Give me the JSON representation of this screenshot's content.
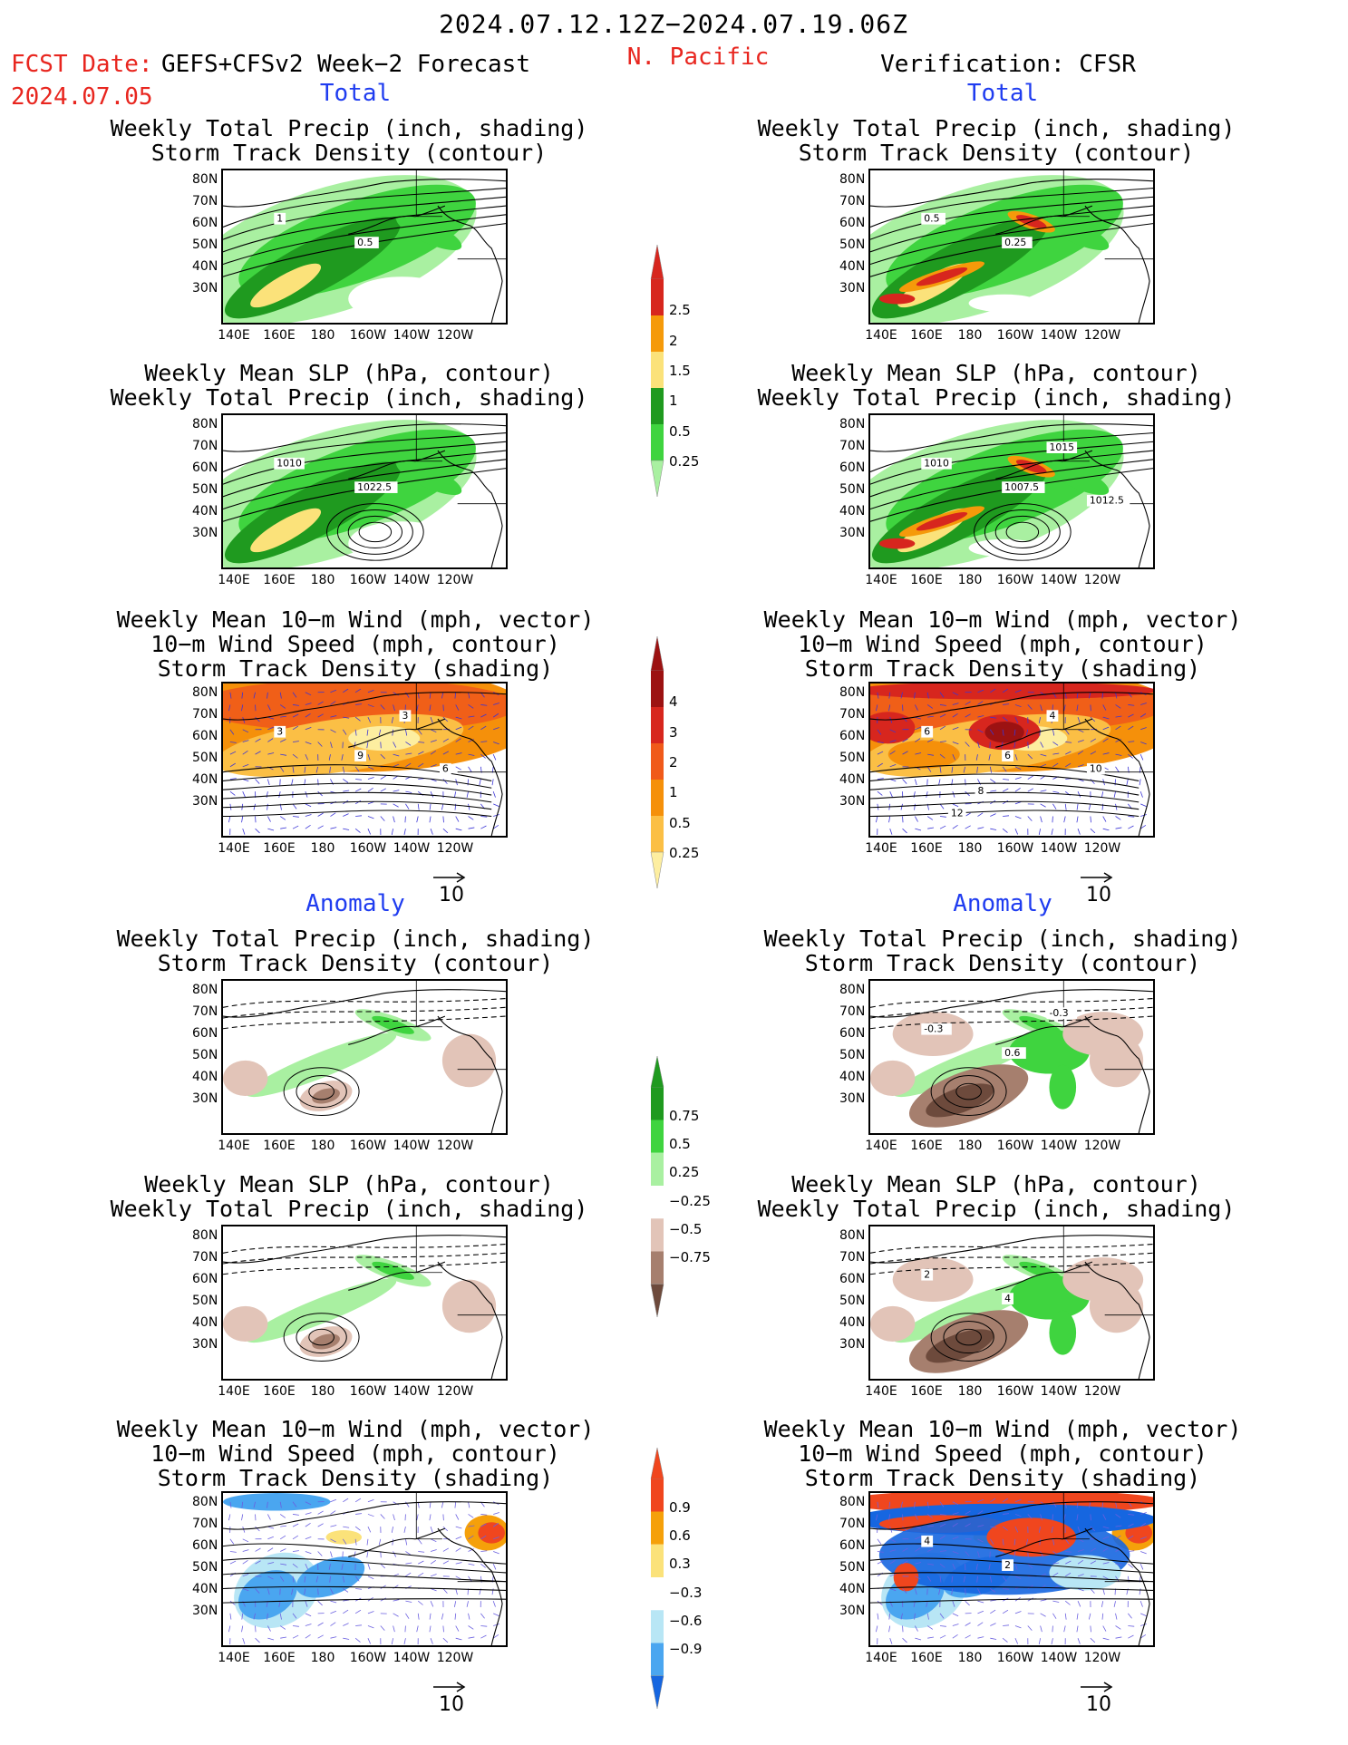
{
  "header": {
    "date_range": "2024.07.12.12Z−2024.07.19.06Z",
    "fcst_label": "FCST Date:",
    "fcst_product": "GEFS+CFSv2 Week−2 Forecast",
    "fcst_date": "2024.07.05",
    "region": "N. Pacific",
    "verification": "Verification: CFSR"
  },
  "sections": {
    "total": "Total",
    "anomaly": "Anomaly"
  },
  "panel_titles": {
    "precip_track": [
      "Weekly Total Precip (inch, shading)",
      "Storm Track Density (contour)"
    ],
    "slp_precip": [
      "Weekly Mean SLP (hPa, contour)",
      "Weekly Total Precip (inch, shading)"
    ],
    "wind_track": [
      "Weekly Mean 10−m Wind (mph, vector)",
      "10−m Wind Speed (mph, contour)",
      "Storm Track Density (shading)"
    ]
  },
  "axes": {
    "lat_labels": [
      "80N",
      "70N",
      "60N",
      "50N",
      "40N",
      "30N"
    ],
    "lon_labels": [
      "140E",
      "160E",
      "180",
      "160W",
      "140W",
      "120W"
    ]
  },
  "vector_ref": "10",
  "contour_labels": {
    "f_total_precip": [
      "1",
      "0.5"
    ],
    "v_total_precip": [
      "0.5",
      "0.25"
    ],
    "f_total_slp": [
      "1010",
      "1022.5"
    ],
    "v_total_slp": [
      "1010",
      "1007.5",
      "1015",
      "1012.5"
    ],
    "f_total_wind": [
      "3",
      "9",
      "3",
      "6"
    ],
    "v_total_wind": [
      "6",
      "6",
      "4",
      "10",
      "8",
      "12"
    ],
    "v_anom_precip": [
      "-0.3",
      "0.6",
      "-0.3"
    ],
    "v_anom_slp": [
      "2",
      "4"
    ],
    "v_anom_wind": [
      "4",
      "2"
    ]
  },
  "colorbars": {
    "precip_total": {
      "labels": [
        "2.5",
        "2",
        "1.5",
        "1",
        "0.5",
        "0.25"
      ],
      "colors": [
        "#d7261e",
        "#f59a0a",
        "#fbe27a",
        "#1f9a1f",
        "#3fd43f",
        "#a9f0a1"
      ]
    },
    "track_total": {
      "labels": [
        "4",
        "3",
        "2",
        "1",
        "0.5",
        "0.25"
      ],
      "colors": [
        "#9c1212",
        "#d7261e",
        "#f05a1a",
        "#f5900a",
        "#fbbf45",
        "#fdeea0"
      ]
    },
    "precip_anom": {
      "labels": [
        "0.75",
        "0.5",
        "0.25",
        "−0.25",
        "−0.5",
        "−0.75"
      ],
      "colors": [
        "#1f9a1f",
        "#3fd43f",
        "#a9f0a1",
        "#ffffff",
        "#e2c4b8",
        "#a67f6e",
        "#6d4a3c"
      ]
    },
    "track_anom": {
      "labels": [
        "0.9",
        "0.6",
        "0.3",
        "−0.3",
        "−0.6",
        "−0.9"
      ],
      "colors": [
        "#f0461e",
        "#f5a00a",
        "#fbe27a",
        "#ffffff",
        "#b8e6f5",
        "#4aa6f0",
        "#1666e0"
      ]
    }
  }
}
